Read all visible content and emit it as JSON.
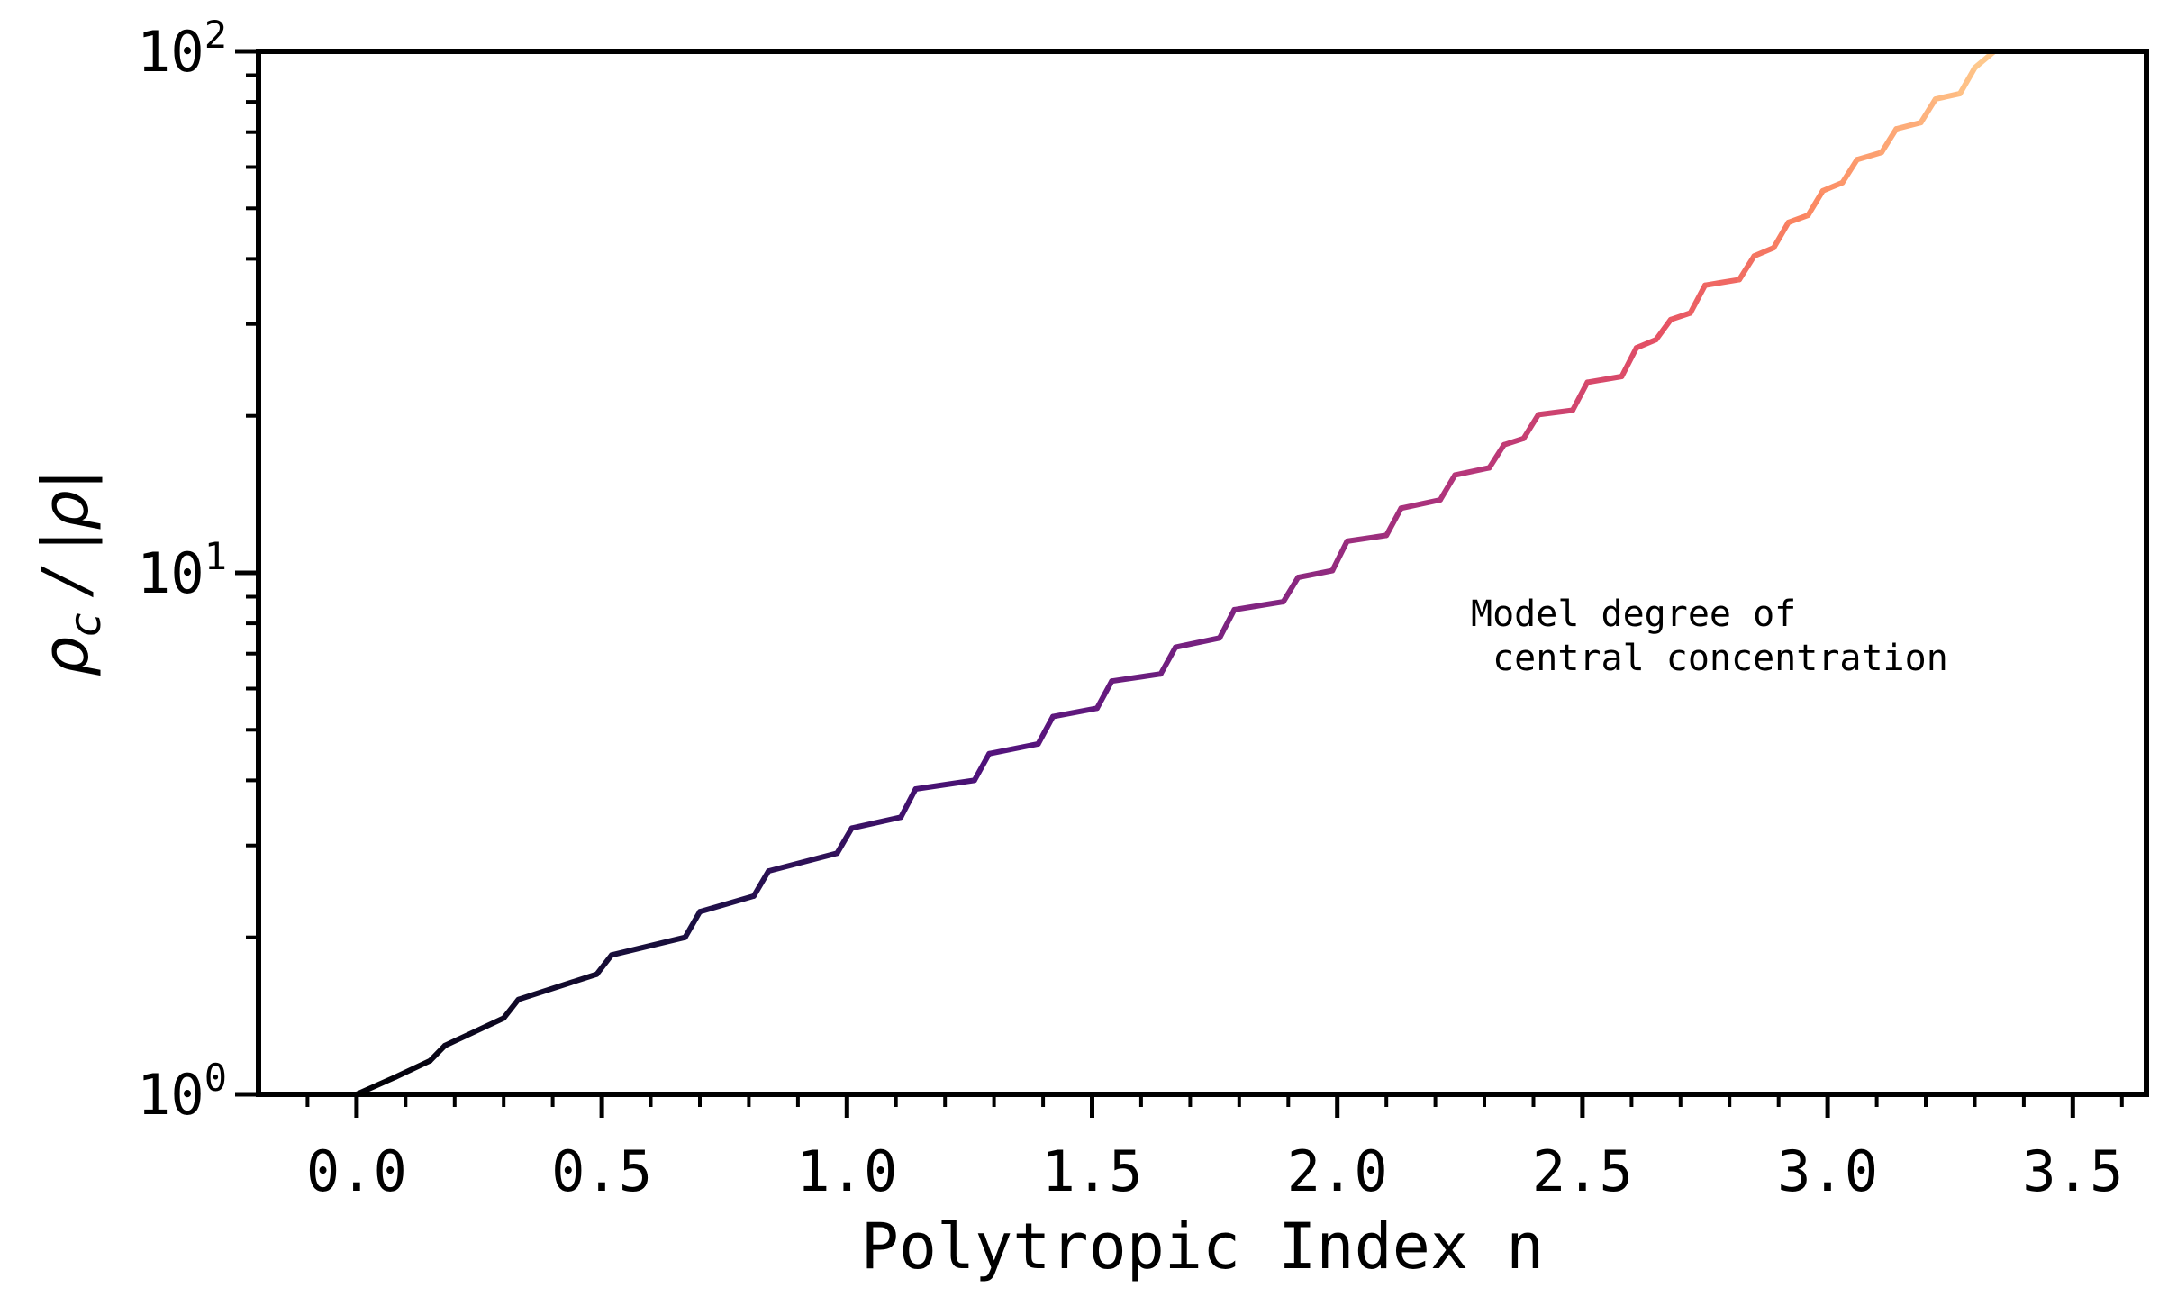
{
  "chart_data": {
    "type": "line",
    "xlabel": "Polytropic Index n",
    "ylabel": {
      "rho": "ρ",
      "sub": "c",
      "rest": " / |ρ|"
    },
    "xlim": [
      -0.2,
      3.65
    ],
    "ylim": [
      1,
      100
    ],
    "yscale": "log",
    "x_ticks": [
      "0.0",
      "0.5",
      "1.0",
      "1.5",
      "2.0",
      "2.5",
      "3.0",
      "3.5"
    ],
    "x_tick_values": [
      0,
      0.5,
      1,
      1.5,
      2,
      2.5,
      3,
      3.5
    ],
    "y_ticks": [
      {
        "base": "10",
        "exp": "0",
        "value": 1
      },
      {
        "base": "10",
        "exp": "1",
        "value": 10
      },
      {
        "base": "10",
        "exp": "2",
        "value": 100
      }
    ],
    "annotation": {
      "line1": "Model degree of",
      "line2": " central concentration"
    },
    "grid": false,
    "colormap": "magma",
    "series": [
      {
        "x": [
          0.0,
          0.08,
          0.15,
          0.18,
          0.3,
          0.33,
          0.49,
          0.52,
          0.67,
          0.7,
          0.81,
          0.84,
          0.98,
          1.01,
          1.11,
          1.14,
          1.26,
          1.29,
          1.39,
          1.42,
          1.51,
          1.54,
          1.64,
          1.67,
          1.76,
          1.79,
          1.89,
          1.92,
          1.99,
          2.02,
          2.1,
          2.13,
          2.21,
          2.24,
          2.31,
          2.34,
          2.38,
          2.41,
          2.48,
          2.51,
          2.58,
          2.61,
          2.65,
          2.68,
          2.72,
          2.75,
          2.82,
          2.85,
          2.89,
          2.92,
          2.96,
          2.99,
          3.03,
          3.06,
          3.11,
          3.14,
          3.19,
          3.22,
          3.27,
          3.3,
          3.34
        ],
        "y": [
          1.0,
          1.08,
          1.16,
          1.24,
          1.4,
          1.52,
          1.7,
          1.85,
          2.0,
          2.24,
          2.4,
          2.68,
          2.9,
          3.24,
          3.4,
          3.85,
          4.0,
          4.5,
          4.7,
          5.3,
          5.5,
          6.2,
          6.4,
          7.2,
          7.5,
          8.5,
          8.8,
          9.8,
          10.1,
          11.5,
          11.8,
          13.3,
          13.8,
          15.4,
          15.9,
          17.6,
          18.1,
          20.1,
          20.5,
          23.2,
          23.8,
          27.0,
          28.0,
          30.6,
          31.5,
          35.6,
          36.5,
          40.5,
          42.0,
          47.0,
          48.5,
          54.0,
          56.0,
          62.0,
          64.0,
          71.0,
          73.0,
          81.0,
          83.0,
          93.0,
          100.0
        ]
      }
    ]
  }
}
